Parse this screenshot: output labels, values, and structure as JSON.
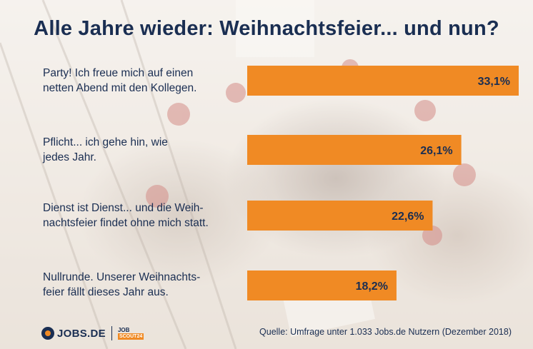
{
  "title": "Alle Jahre wieder: Weihnachtsfeier... und nun?",
  "bar_color": "#f08a24",
  "text_color": "#1a2e52",
  "chart_data": {
    "type": "bar",
    "orientation": "horizontal",
    "categories": [
      [
        "Party! Ich freue mich auf einen",
        "netten Abend mit den Kollegen."
      ],
      [
        "Pflicht... ich gehe hin, wie",
        "jedes Jahr."
      ],
      [
        "Dienst ist Dienst... und die Weih-",
        "nachtsfeier findet ohne mich statt."
      ],
      [
        "Nullrunde. Unserer Weihnachts-",
        "feier fällt dieses Jahr aus."
      ]
    ],
    "values": [
      33.1,
      26.1,
      22.6,
      18.2
    ],
    "data_labels": [
      "33,1%",
      "26,1%",
      "22,6%",
      "18,2%"
    ],
    "grid": false,
    "legend": "none"
  },
  "source": "Quelle: Umfrage unter 1.033 Jobs.de Nutzern (Dezember 2018)",
  "logo": {
    "word": "JOBS.DE",
    "badge_top": "JOB",
    "badge_bottom": "SCOUT24"
  }
}
